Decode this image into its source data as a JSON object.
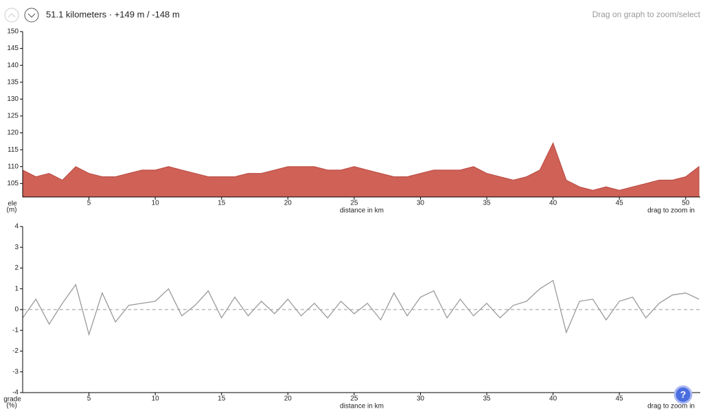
{
  "header": {
    "summary": "51.1 kilometers · +149 m / -148 m",
    "hint": "Drag on graph to zoom/select"
  },
  "chart_data": [
    {
      "type": "area",
      "y_label": "ele",
      "y_unit": "(m)",
      "x_label": "distance in km",
      "hint": "drag to zoom in",
      "x": [
        0,
        1,
        2,
        3,
        4,
        5,
        6,
        7,
        8,
        9,
        10,
        11,
        12,
        13,
        14,
        15,
        16,
        17,
        18,
        19,
        20,
        21,
        22,
        23,
        24,
        25,
        26,
        27,
        28,
        29,
        30,
        31,
        32,
        33,
        34,
        35,
        36,
        37,
        38,
        39,
        40,
        41,
        42,
        43,
        44,
        45,
        46,
        47,
        48,
        49,
        50,
        51
      ],
      "values": [
        109,
        107,
        108,
        106,
        110,
        108,
        107,
        107,
        108,
        109,
        109,
        110,
        109,
        108,
        107,
        107,
        107,
        108,
        108,
        109,
        110,
        110,
        110,
        109,
        109,
        110,
        109,
        108,
        107,
        107,
        108,
        109,
        109,
        109,
        110,
        108,
        107,
        106,
        107,
        109,
        117,
        106,
        104,
        103,
        104,
        103,
        104,
        105,
        106,
        106,
        107,
        110
      ],
      "color": "#cf6157",
      "xlim": [
        0,
        51.1
      ],
      "ylim": [
        101,
        150
      ],
      "xticks": [
        5,
        10,
        15,
        20,
        25,
        30,
        35,
        40,
        45,
        50
      ],
      "yticks": [
        105,
        110,
        115,
        120,
        125,
        130,
        135,
        140,
        145,
        150
      ]
    },
    {
      "type": "line",
      "y_label": "grade",
      "y_unit": "(%)",
      "x_label": "distance in km",
      "hint": "drag to zoom in",
      "x": [
        0,
        1,
        2,
        3,
        4,
        5,
        6,
        7,
        8,
        9,
        10,
        11,
        12,
        13,
        14,
        15,
        16,
        17,
        18,
        19,
        20,
        21,
        22,
        23,
        24,
        25,
        26,
        27,
        28,
        29,
        30,
        31,
        32,
        33,
        34,
        35,
        36,
        37,
        38,
        39,
        40,
        41,
        42,
        43,
        44,
        45,
        46,
        47,
        48,
        49,
        50,
        51
      ],
      "values": [
        -0.4,
        0.5,
        -0.7,
        0.3,
        1.2,
        -1.2,
        0.8,
        -0.6,
        0.2,
        0.3,
        0.4,
        1.0,
        -0.3,
        0.2,
        0.9,
        -0.4,
        0.6,
        -0.3,
        0.4,
        -0.2,
        0.5,
        -0.3,
        0.3,
        -0.4,
        0.4,
        -0.2,
        0.3,
        -0.5,
        0.8,
        -0.3,
        0.6,
        0.9,
        -0.4,
        0.5,
        -0.3,
        0.3,
        -0.4,
        0.2,
        0.4,
        1.0,
        1.4,
        -1.1,
        0.4,
        0.5,
        -0.5,
        0.4,
        0.6,
        -0.4,
        0.3,
        0.7,
        0.8,
        0.5
      ],
      "color": "#999999",
      "zero_line_dashed": true,
      "xlim": [
        0,
        51.1
      ],
      "ylim": [
        -4,
        4
      ],
      "xticks": [
        5,
        10,
        15,
        20,
        25,
        30,
        35,
        40,
        45
      ],
      "yticks": [
        -4,
        -3,
        -2,
        -1,
        0,
        1,
        2,
        3,
        4
      ]
    }
  ]
}
